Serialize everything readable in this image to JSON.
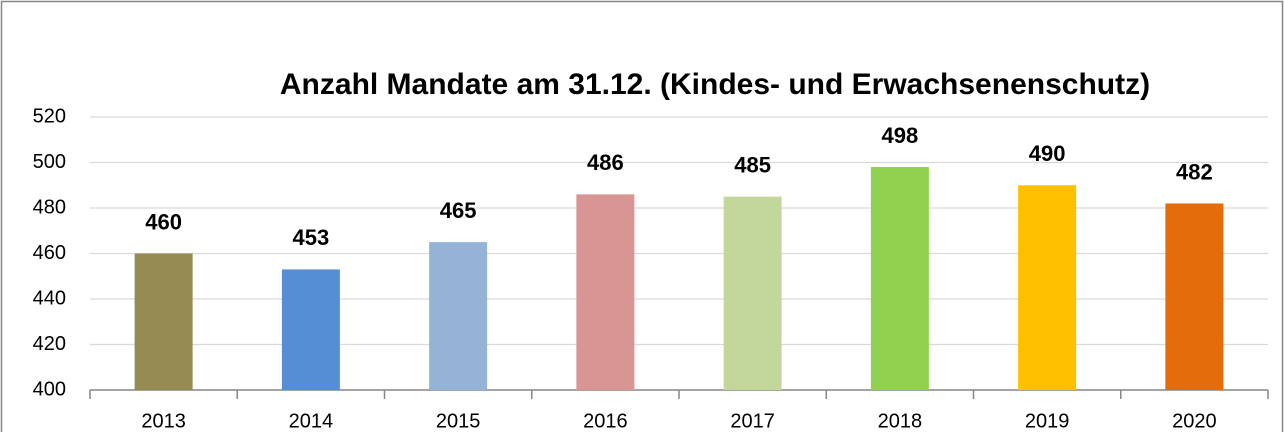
{
  "chart_data": {
    "type": "bar",
    "title": "Anzahl Mandate am 31.12. (Kindes- und Erwachsenenschutz)",
    "categories": [
      "2013",
      "2014",
      "2015",
      "2016",
      "2017",
      "2018",
      "2019",
      "2020"
    ],
    "values": [
      460,
      453,
      465,
      486,
      485,
      498,
      490,
      482
    ],
    "colors": [
      "#968b53",
      "#558ed5",
      "#95b3d7",
      "#d99594",
      "#c3d69b",
      "#92d050",
      "#ffc000",
      "#e46c0a"
    ],
    "ylim": [
      400,
      520
    ],
    "yticks": [
      400,
      420,
      440,
      460,
      480,
      500,
      520
    ],
    "grid": true
  }
}
